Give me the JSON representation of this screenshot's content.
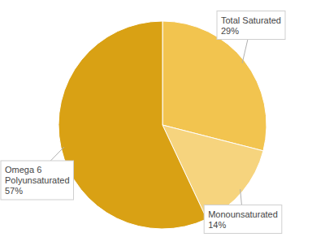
{
  "chart_data": {
    "type": "pie",
    "categories": [
      "Total Saturated",
      "Monounsaturated",
      "Omega 6 Polyunsaturated"
    ],
    "values": [
      29,
      14,
      57
    ],
    "value_labels": [
      "29%",
      "14%",
      "57%"
    ],
    "colors": [
      "#f2c44f",
      "#f6d47e",
      "#d9a114"
    ],
    "data_labels": true
  }
}
